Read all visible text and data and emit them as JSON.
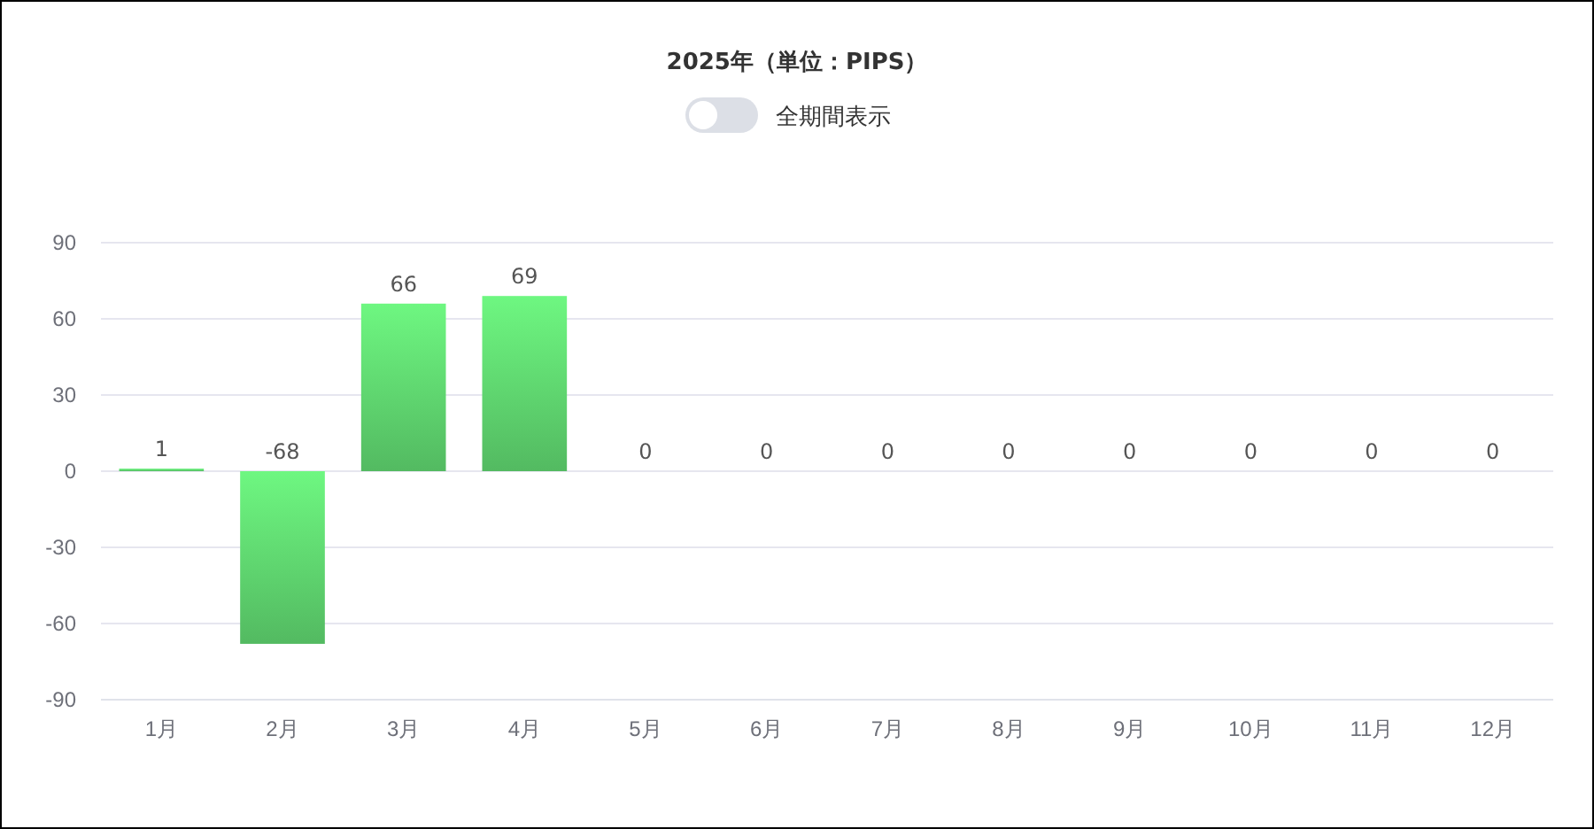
{
  "chart_data": {
    "type": "bar",
    "title": "2025年（単位：PIPS）",
    "annotations": [
      "全期間表示"
    ],
    "categories": [
      "1月",
      "2月",
      "3月",
      "4月",
      "5月",
      "6月",
      "7月",
      "8月",
      "9月",
      "10月",
      "11月",
      "12月"
    ],
    "values": [
      1,
      -68,
      66,
      69,
      0,
      0,
      0,
      0,
      0,
      0,
      0,
      0
    ],
    "color": "#5ccf6c",
    "ylim": [
      -90,
      90
    ],
    "yticks": [
      -90,
      -60,
      -30,
      0,
      30,
      60,
      90
    ],
    "grid": "y",
    "data_labels": true
  }
}
